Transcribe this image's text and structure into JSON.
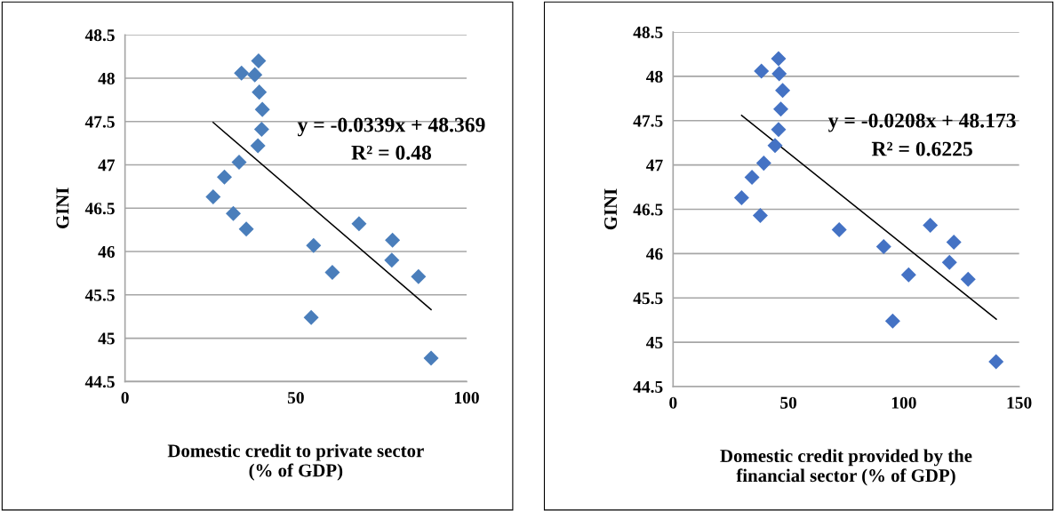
{
  "chart_data": [
    {
      "type": "scatter",
      "xlabel": "Domestic credit to private sector\n(% of GDP)",
      "ylabel": "GINI",
      "annotations": [
        "y = -0.0339x + 48.369",
        "R² = 0.48"
      ],
      "xlim": [
        0,
        100
      ],
      "xticks": [
        0,
        50,
        100
      ],
      "ylim": [
        44.5,
        48.5
      ],
      "yticks": [
        44.5,
        45,
        45.5,
        46,
        46.5,
        47,
        47.5,
        48,
        48.5
      ],
      "grid": "y",
      "series": [
        {
          "marker": "diamond",
          "color": "#4a7ebb",
          "x": [
            39.1,
            34.1,
            38.0,
            39.3,
            40.2,
            40.0,
            38.9,
            33.4,
            29.1,
            25.8,
            31.7,
            35.5,
            68.5,
            78.3,
            55.2,
            78.1,
            60.7,
            85.9,
            54.5,
            89.6
          ],
          "values": [
            48.2,
            48.06,
            48.04,
            47.84,
            47.64,
            47.41,
            47.22,
            47.03,
            46.86,
            46.63,
            46.44,
            46.26,
            46.32,
            46.13,
            46.07,
            45.9,
            45.76,
            45.71,
            45.24,
            44.77
          ]
        },
        {
          "type": "line",
          "marker": "none",
          "color": "#000000",
          "x": [
            25.8,
            89.6
          ],
          "values": [
            47.49,
            45.33
          ]
        }
      ]
    },
    {
      "type": "scatter",
      "xlabel": "Domestic credit provided by the\nfinancial sector (% of GDP)",
      "ylabel": "GINI",
      "annotations": [
        "y = -0.0208x + 48.173",
        "R² = 0.6225"
      ],
      "xlim": [
        0,
        150
      ],
      "xticks": [
        0,
        50,
        100,
        150
      ],
      "ylim": [
        44.5,
        48.5
      ],
      "yticks": [
        44.5,
        45,
        45.5,
        46,
        46.5,
        47,
        47.5,
        48,
        48.5
      ],
      "grid": "y",
      "series": [
        {
          "marker": "diamond",
          "color": "#4472c4",
          "x": [
            45.7,
            38.3,
            46.0,
            47.5,
            46.7,
            45.7,
            44.2,
            39.3,
            34.2,
            29.7,
            37.8,
            72.0,
            111.5,
            121.7,
            91.3,
            119.8,
            102.1,
            127.9,
            95.2,
            140.0
          ],
          "values": [
            48.2,
            48.06,
            48.03,
            47.84,
            47.63,
            47.4,
            47.22,
            47.02,
            46.86,
            46.63,
            46.43,
            46.27,
            46.32,
            46.13,
            46.08,
            45.9,
            45.76,
            45.71,
            45.24,
            44.78
          ]
        },
        {
          "type": "line",
          "marker": "none",
          "color": "#000000",
          "x": [
            29.7,
            140.1
          ],
          "values": [
            47.56,
            45.26
          ]
        }
      ]
    }
  ]
}
